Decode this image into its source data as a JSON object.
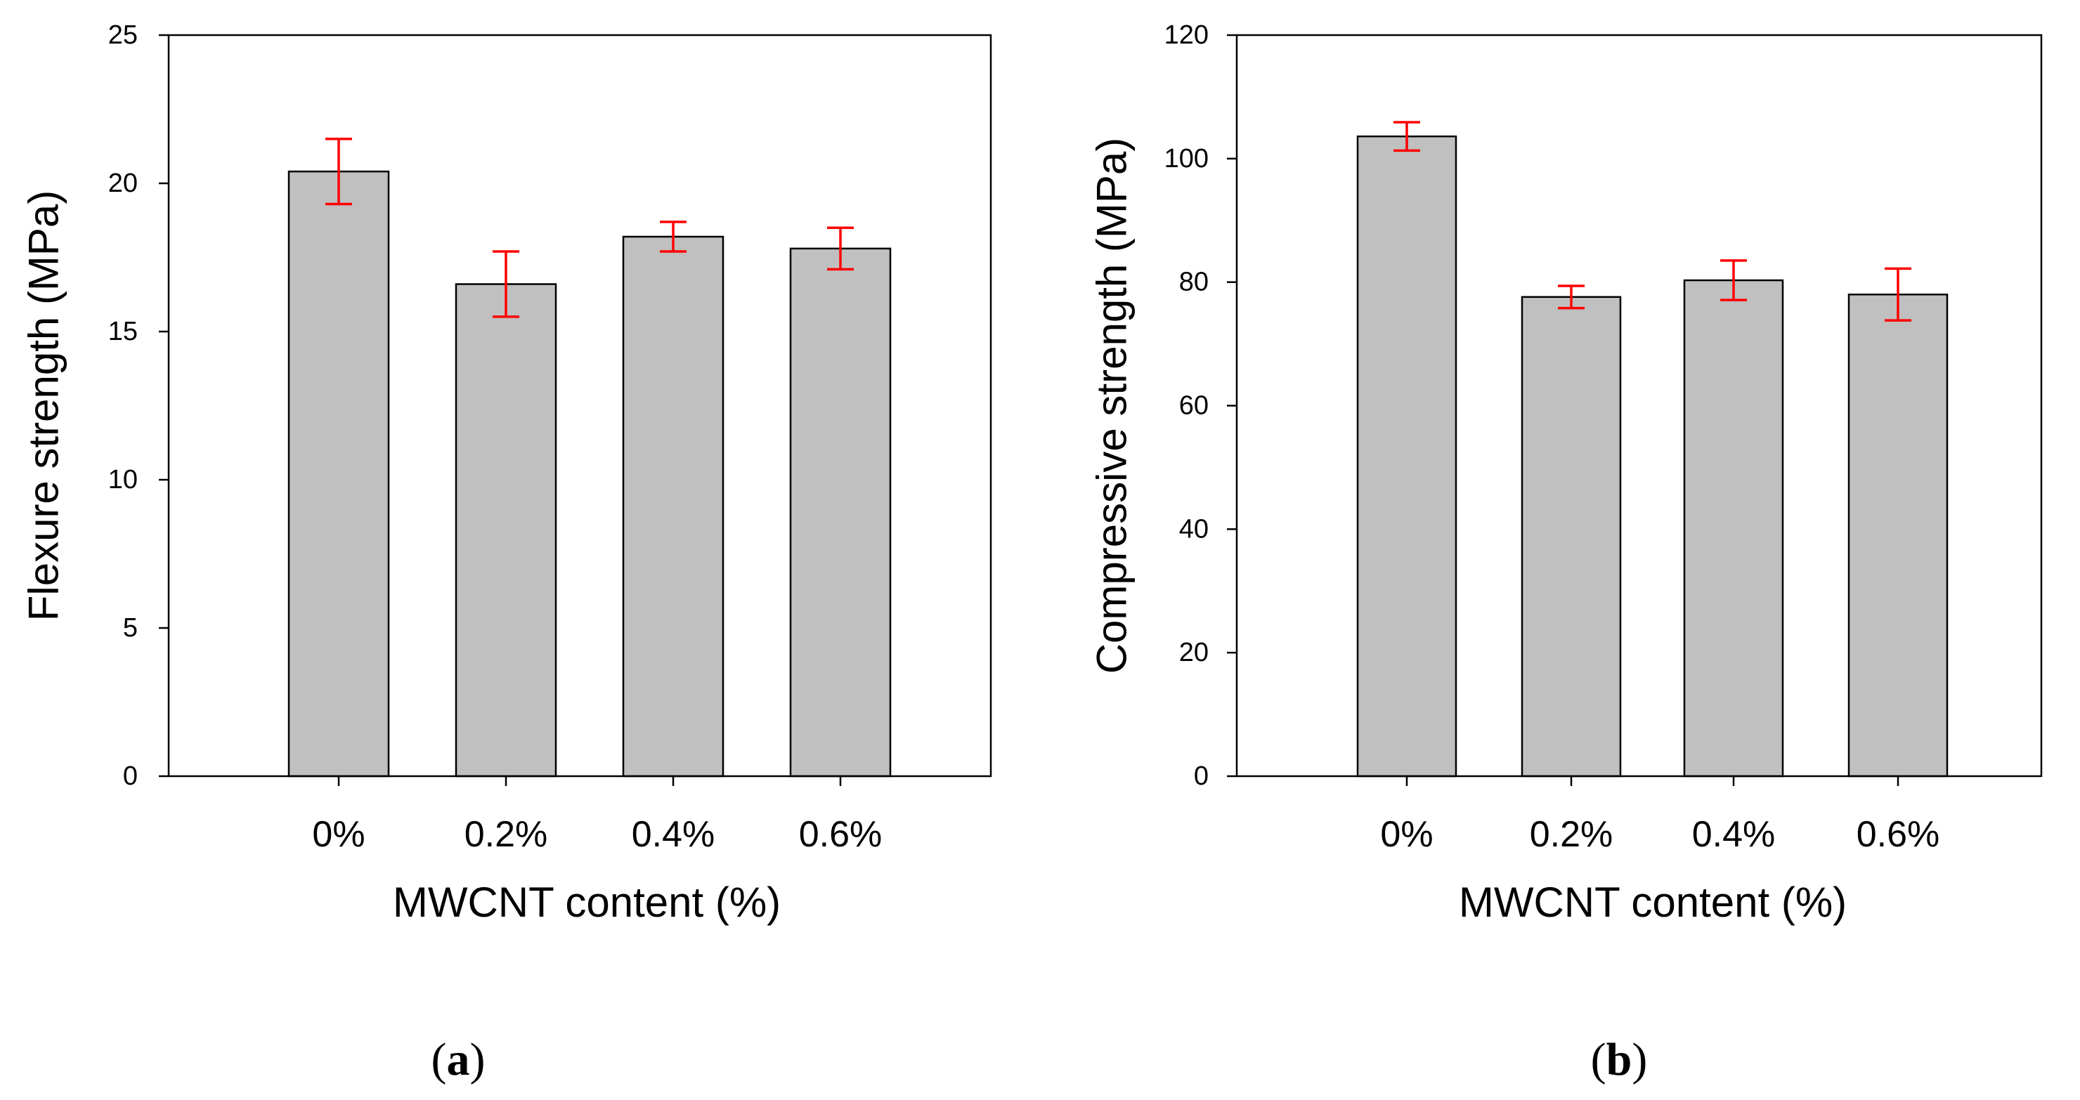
{
  "colors": {
    "bar_fill": "#c0c0c0",
    "bar_stroke": "#000000",
    "error_bar": "#ff0000",
    "axis": "#000000"
  },
  "chart_data": [
    {
      "id": "flexure",
      "type": "bar",
      "panel_open": "(",
      "panel_letter": "a",
      "panel_close": ")",
      "title": "",
      "xlabel": "MWCNT content  (%)",
      "ylabel": "Flexure strength (MPa)",
      "categories": [
        "0%",
        "0.2%",
        "0.4%",
        "0.6%"
      ],
      "values": [
        20.4,
        16.6,
        18.2,
        17.8
      ],
      "errors": [
        1.1,
        1.1,
        0.5,
        0.7
      ],
      "ylim": [
        0,
        25
      ],
      "yticks": [
        0,
        5,
        10,
        15,
        20,
        25
      ],
      "ytick_labels": [
        "0",
        "5",
        "10",
        "15",
        "20",
        "25"
      ],
      "grid": false,
      "legend": null
    },
    {
      "id": "compressive",
      "type": "bar",
      "panel_open": "(",
      "panel_letter": "b",
      "panel_close": ")",
      "title": "",
      "xlabel": "MWCNT content (%)",
      "ylabel": "Compressive strength (MPa)",
      "categories": [
        "0%",
        "0.2%",
        "0.4%",
        "0.6%"
      ],
      "values": [
        103.6,
        77.6,
        80.3,
        78.0
      ],
      "errors": [
        2.3,
        1.8,
        3.2,
        4.2
      ],
      "ylim": [
        0,
        120
      ],
      "yticks": [
        0,
        20,
        40,
        60,
        80,
        100,
        120
      ],
      "ytick_labels": [
        "0",
        "20",
        "40",
        "60",
        "80",
        "100",
        "120"
      ],
      "grid": false,
      "legend": null
    }
  ]
}
